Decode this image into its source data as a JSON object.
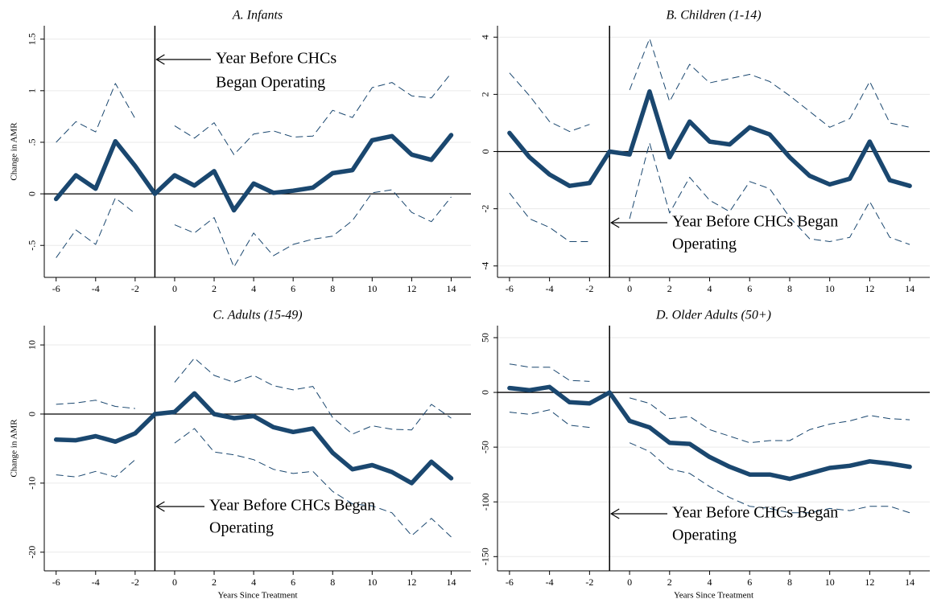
{
  "chart_data": [
    {
      "type": "line",
      "title": "A. Infants",
      "y_label": "Change in AMR",
      "x": [
        -6,
        -5,
        -4,
        -3,
        -2,
        -1,
        0,
        1,
        2,
        3,
        4,
        5,
        6,
        7,
        8,
        9,
        10,
        11,
        12,
        13,
        14
      ],
      "series": [
        {
          "color": "#1a476f",
          "dashed": false,
          "values": [
            -0.05,
            0.18,
            0.05,
            0.51,
            0.27,
            0.0,
            0.18,
            0.08,
            0.22,
            -0.16,
            0.1,
            0.01,
            0.03,
            0.06,
            0.2,
            0.23,
            0.52,
            0.56,
            0.38,
            0.33,
            0.57
          ]
        },
        {
          "color": "#1a476f",
          "dashed": true,
          "values": [
            0.5,
            0.7,
            0.6,
            1.07,
            0.73,
            null,
            0.66,
            0.54,
            0.69,
            0.38,
            0.58,
            0.61,
            0.55,
            0.56,
            0.81,
            0.74,
            1.03,
            1.08,
            0.95,
            0.93,
            1.17
          ]
        },
        {
          "color": "#1a476f",
          "dashed": true,
          "values": [
            -0.62,
            -0.35,
            -0.49,
            -0.04,
            -0.19,
            null,
            -0.3,
            -0.38,
            -0.23,
            -0.71,
            -0.38,
            -0.6,
            -0.49,
            -0.44,
            -0.41,
            -0.26,
            0.01,
            0.04,
            -0.18,
            -0.27,
            -0.03
          ]
        }
      ],
      "xlim": [
        -6.6,
        15
      ],
      "xticks": [
        -6,
        -4,
        -2,
        0,
        2,
        4,
        6,
        8,
        10,
        12,
        14
      ],
      "ylim": [
        -0.81,
        1.63
      ],
      "yticks": [
        {
          "value": -0.5,
          "label": "-.5"
        },
        0,
        {
          "value": 0.5,
          "label": ".5"
        },
        1,
        1.5
      ],
      "grid": true,
      "hline": 0,
      "vline": -1,
      "annotation": [
        "Year Before CHCs",
        "Began Operating"
      ]
    },
    {
      "type": "line",
      "title": "B. Children (1-14)",
      "x": [
        -6,
        -5,
        -4,
        -3,
        -2,
        -1,
        0,
        1,
        2,
        3,
        4,
        5,
        6,
        7,
        8,
        9,
        10,
        11,
        12,
        13,
        14
      ],
      "series": [
        {
          "color": "#1a476f",
          "dashed": false,
          "values": [
            0.65,
            -0.2,
            -0.8,
            -1.2,
            -1.1,
            0.0,
            -0.1,
            2.1,
            -0.2,
            1.05,
            0.35,
            0.25,
            0.85,
            0.6,
            -0.2,
            -0.85,
            -1.15,
            -0.95,
            0.35,
            -1.0,
            -1.2
          ]
        },
        {
          "color": "#1a476f",
          "dashed": true,
          "values": [
            2.75,
            1.95,
            1.05,
            0.7,
            0.95,
            null,
            2.15,
            3.95,
            1.75,
            3.05,
            2.4,
            2.55,
            2.7,
            2.45,
            1.95,
            1.4,
            0.85,
            1.15,
            2.45,
            1.0,
            0.85
          ]
        },
        {
          "color": "#1a476f",
          "dashed": true,
          "values": [
            -1.45,
            -2.35,
            -2.65,
            -3.15,
            -3.15,
            null,
            -2.35,
            0.3,
            -2.15,
            -0.9,
            -1.7,
            -2.1,
            -1.05,
            -1.3,
            -2.3,
            -3.05,
            -3.15,
            -3.0,
            -1.75,
            -3.0,
            -3.25
          ]
        }
      ],
      "xlim": [
        -6.6,
        15
      ],
      "xticks": [
        -6,
        -4,
        -2,
        0,
        2,
        4,
        6,
        8,
        10,
        12,
        14
      ],
      "ylim": [
        -4.4,
        4.4
      ],
      "yticks": [
        -4,
        -2,
        0,
        2,
        4
      ],
      "grid": true,
      "hline": 0,
      "vline": -1,
      "annotation": [
        "Year Before CHCs Began",
        "Operating"
      ]
    },
    {
      "type": "line",
      "title": "C. Adults (15-49)",
      "y_label": "Change in AMR",
      "x_label": "Years Since Treatment",
      "x": [
        -6,
        -5,
        -4,
        -3,
        -2,
        -1,
        0,
        1,
        2,
        3,
        4,
        5,
        6,
        7,
        8,
        9,
        10,
        11,
        12,
        13,
        14
      ],
      "series": [
        {
          "color": "#1a476f",
          "dashed": false,
          "values": [
            -3.7,
            -3.8,
            -3.2,
            -4.0,
            -2.8,
            0.0,
            0.3,
            3.0,
            0.0,
            -0.6,
            -0.3,
            -1.9,
            -2.6,
            -2.1,
            -5.6,
            -8.0,
            -7.4,
            -8.4,
            -10.0,
            -6.9,
            -9.3
          ]
        },
        {
          "color": "#1a476f",
          "dashed": true,
          "values": [
            1.4,
            1.6,
            2.0,
            1.1,
            0.8,
            null,
            4.6,
            8.1,
            5.6,
            4.6,
            5.6,
            4.1,
            3.5,
            4.0,
            -0.5,
            -2.9,
            -1.7,
            -2.2,
            -2.3,
            1.4,
            -0.6
          ]
        },
        {
          "color": "#1a476f",
          "dashed": true,
          "values": [
            -8.8,
            -9.1,
            -8.3,
            -9.1,
            -6.6,
            null,
            -4.2,
            -2.1,
            -5.5,
            -5.9,
            -6.6,
            -8.0,
            -8.6,
            -8.3,
            -11.2,
            -13.0,
            -13.3,
            -14.3,
            -17.6,
            -15.1,
            -17.8
          ]
        }
      ],
      "xlim": [
        -6.6,
        15
      ],
      "xticks": [
        -6,
        -4,
        -2,
        0,
        2,
        4,
        6,
        8,
        10,
        12,
        14
      ],
      "ylim": [
        -22.7,
        12.8
      ],
      "yticks": [
        -20,
        -10,
        0,
        10
      ],
      "grid": true,
      "hline": 0,
      "vline": -1,
      "annotation": [
        "Year Before CHCs Began",
        "Operating"
      ]
    },
    {
      "type": "line",
      "title": "D. Older Adults (50+)",
      "x_label": "Years Since Treatment",
      "x": [
        -6,
        -5,
        -4,
        -3,
        -2,
        -1,
        0,
        1,
        2,
        3,
        4,
        5,
        6,
        7,
        8,
        9,
        10,
        11,
        12,
        13,
        14
      ],
      "series": [
        {
          "color": "#1a476f",
          "dashed": false,
          "values": [
            4,
            2,
            5,
            -9,
            -10,
            0,
            -26,
            -32,
            -46,
            -47,
            -59,
            -68,
            -75,
            -75,
            -79,
            -74,
            -69,
            -67,
            -63,
            -65,
            -68
          ]
        },
        {
          "color": "#1a476f",
          "dashed": true,
          "values": [
            26,
            23,
            23,
            11,
            10,
            null,
            -5,
            -10,
            -24,
            -22,
            -34,
            -40,
            -46,
            -44,
            -44,
            -34,
            -29,
            -26,
            -21,
            -24,
            -25
          ]
        },
        {
          "color": "#1a476f",
          "dashed": true,
          "values": [
            -18,
            -20,
            -16,
            -30,
            -32,
            null,
            -46,
            -54,
            -70,
            -74,
            -86,
            -96,
            -104,
            -106,
            -110,
            -110,
            -106,
            -108,
            -104,
            -104,
            -110
          ]
        }
      ],
      "xlim": [
        -6.6,
        15
      ],
      "xticks": [
        -6,
        -4,
        -2,
        0,
        2,
        4,
        6,
        8,
        10,
        12,
        14
      ],
      "ylim": [
        -163,
        61
      ],
      "yticks": [
        -150,
        -100,
        -50,
        0,
        50
      ],
      "grid": true,
      "hline": 0,
      "vline": -1,
      "annotation": [
        "Year Before CHCs Began",
        "Operating"
      ]
    }
  ]
}
